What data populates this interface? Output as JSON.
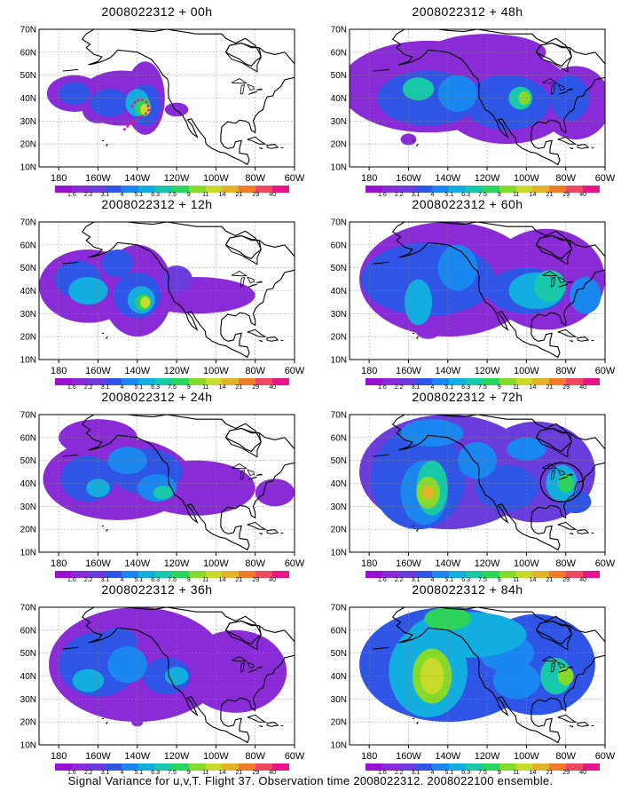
{
  "caption": "Signal Variance for u,v,T. Flight 37. Observation time 2008022312. 2008022100 ensemble.",
  "colorbar": {
    "labels": [
      "1.6",
      "2.2",
      "3.1",
      "4",
      "5.1",
      "6.3",
      "7.5",
      "9",
      "11",
      "14",
      "21",
      "29",
      "40"
    ],
    "colors": [
      "#9a0fd4",
      "#8a2bd8",
      "#6a3cdc",
      "#2f55e6",
      "#1a86f0",
      "#12aee0",
      "#17c9a8",
      "#2bd45a",
      "#86da2a",
      "#c8db2a",
      "#e3b327",
      "#f07a2a",
      "#f04862",
      "#e8158a"
    ]
  },
  "axes": {
    "lon_labels": [
      "180",
      "160W",
      "140W",
      "120W",
      "100W",
      "80W",
      "60W"
    ],
    "lat_labels": [
      "70N",
      "60N",
      "50N",
      "40N",
      "30N",
      "20N",
      "10N"
    ]
  },
  "panels": [
    {
      "title": "2008022312 + 00h"
    },
    {
      "title": "2008022312 + 48h"
    },
    {
      "title": "2008022312 + 12h"
    },
    {
      "title": "2008022312 + 60h"
    },
    {
      "title": "2008022312 + 24h"
    },
    {
      "title": "2008022312 + 72h"
    },
    {
      "title": "2008022312 + 36h"
    },
    {
      "title": "2008022312 + 84h"
    }
  ]
}
